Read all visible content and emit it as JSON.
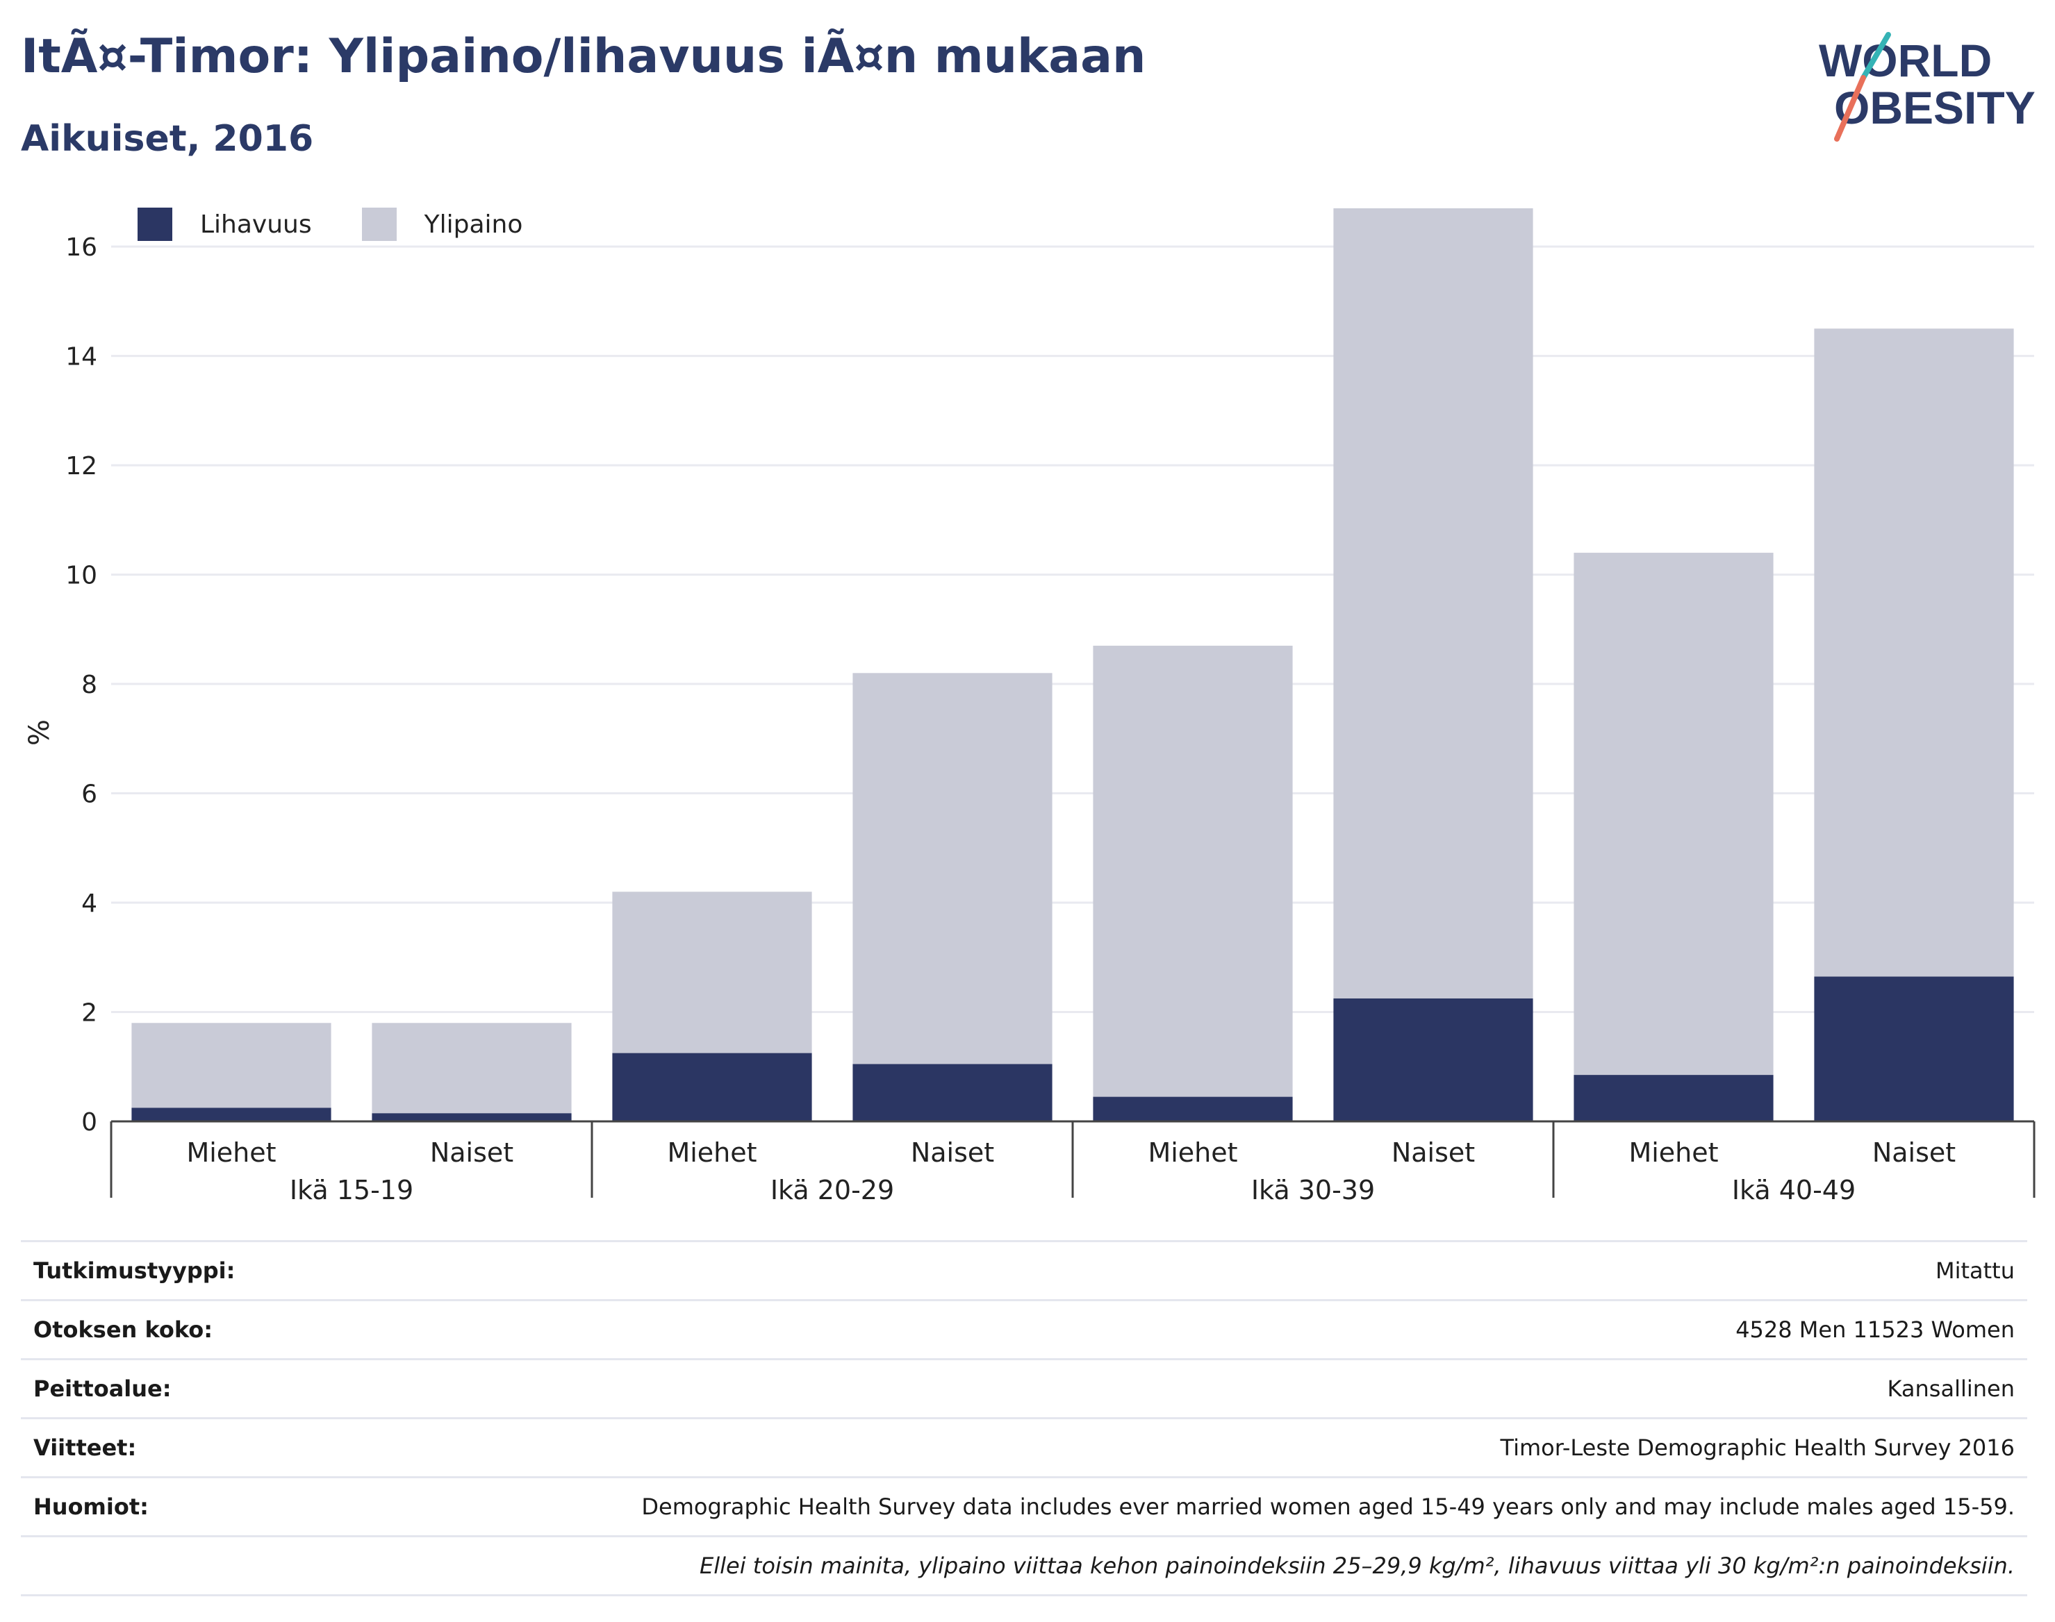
{
  "header": {
    "title": "ItÃ¤-Timor: Ylipaino/lihavuus iÃ¤n mukaan",
    "subtitle": "Aikuiset, 2016"
  },
  "logo": {
    "line1": "WORLD",
    "line2": "OBESITY"
  },
  "legend": [
    {
      "label": "Lihavuus",
      "color": "#2b3663"
    },
    {
      "label": "Ylipaino",
      "color": "#c9cbd7"
    }
  ],
  "chart_data": {
    "type": "bar",
    "stacked": true,
    "ylabel": "%",
    "ylim": [
      0,
      16.7
    ],
    "yticks": [
      0,
      2,
      4,
      6,
      8,
      10,
      12,
      14,
      16
    ],
    "grid": true,
    "legend_position": "top-left",
    "groups": [
      "Ikä 15-19",
      "Ikä 20-29",
      "Ikä 30-39",
      "Ikä 40-49"
    ],
    "categories": [
      "Miehet",
      "Naiset",
      "Miehet",
      "Naiset",
      "Miehet",
      "Naiset",
      "Miehet",
      "Naiset"
    ],
    "series": [
      {
        "name": "Lihavuus",
        "color": "#2b3663",
        "values": [
          0.25,
          0.15,
          1.25,
          1.05,
          0.45,
          2.25,
          0.85,
          2.65
        ]
      },
      {
        "name": "Ylipaino",
        "color": "#c9cbd7",
        "values": [
          1.55,
          1.65,
          2.95,
          7.15,
          8.25,
          14.45,
          9.55,
          11.85
        ]
      }
    ]
  },
  "info": [
    {
      "label": "Tutkimustyyppi:",
      "value": "Mitattu"
    },
    {
      "label": "Otoksen koko:",
      "value": "4528 Men 11523 Women"
    },
    {
      "label": "Peittoalue:",
      "value": "Kansallinen"
    },
    {
      "label": "Viitteet:",
      "value": "Timor-Leste Demographic Health Survey 2016"
    },
    {
      "label": "Huomiot:",
      "value": "Demographic Health Survey data includes ever married women aged 15-49 years only and may include males aged 15-59."
    }
  ],
  "footnote": "Ellei toisin mainita, ylipaino viittaa kehon painoindeksiin 25–29,9 kg/m², lihavuus viittaa yli 30 kg/m²:n painoindeksiin."
}
